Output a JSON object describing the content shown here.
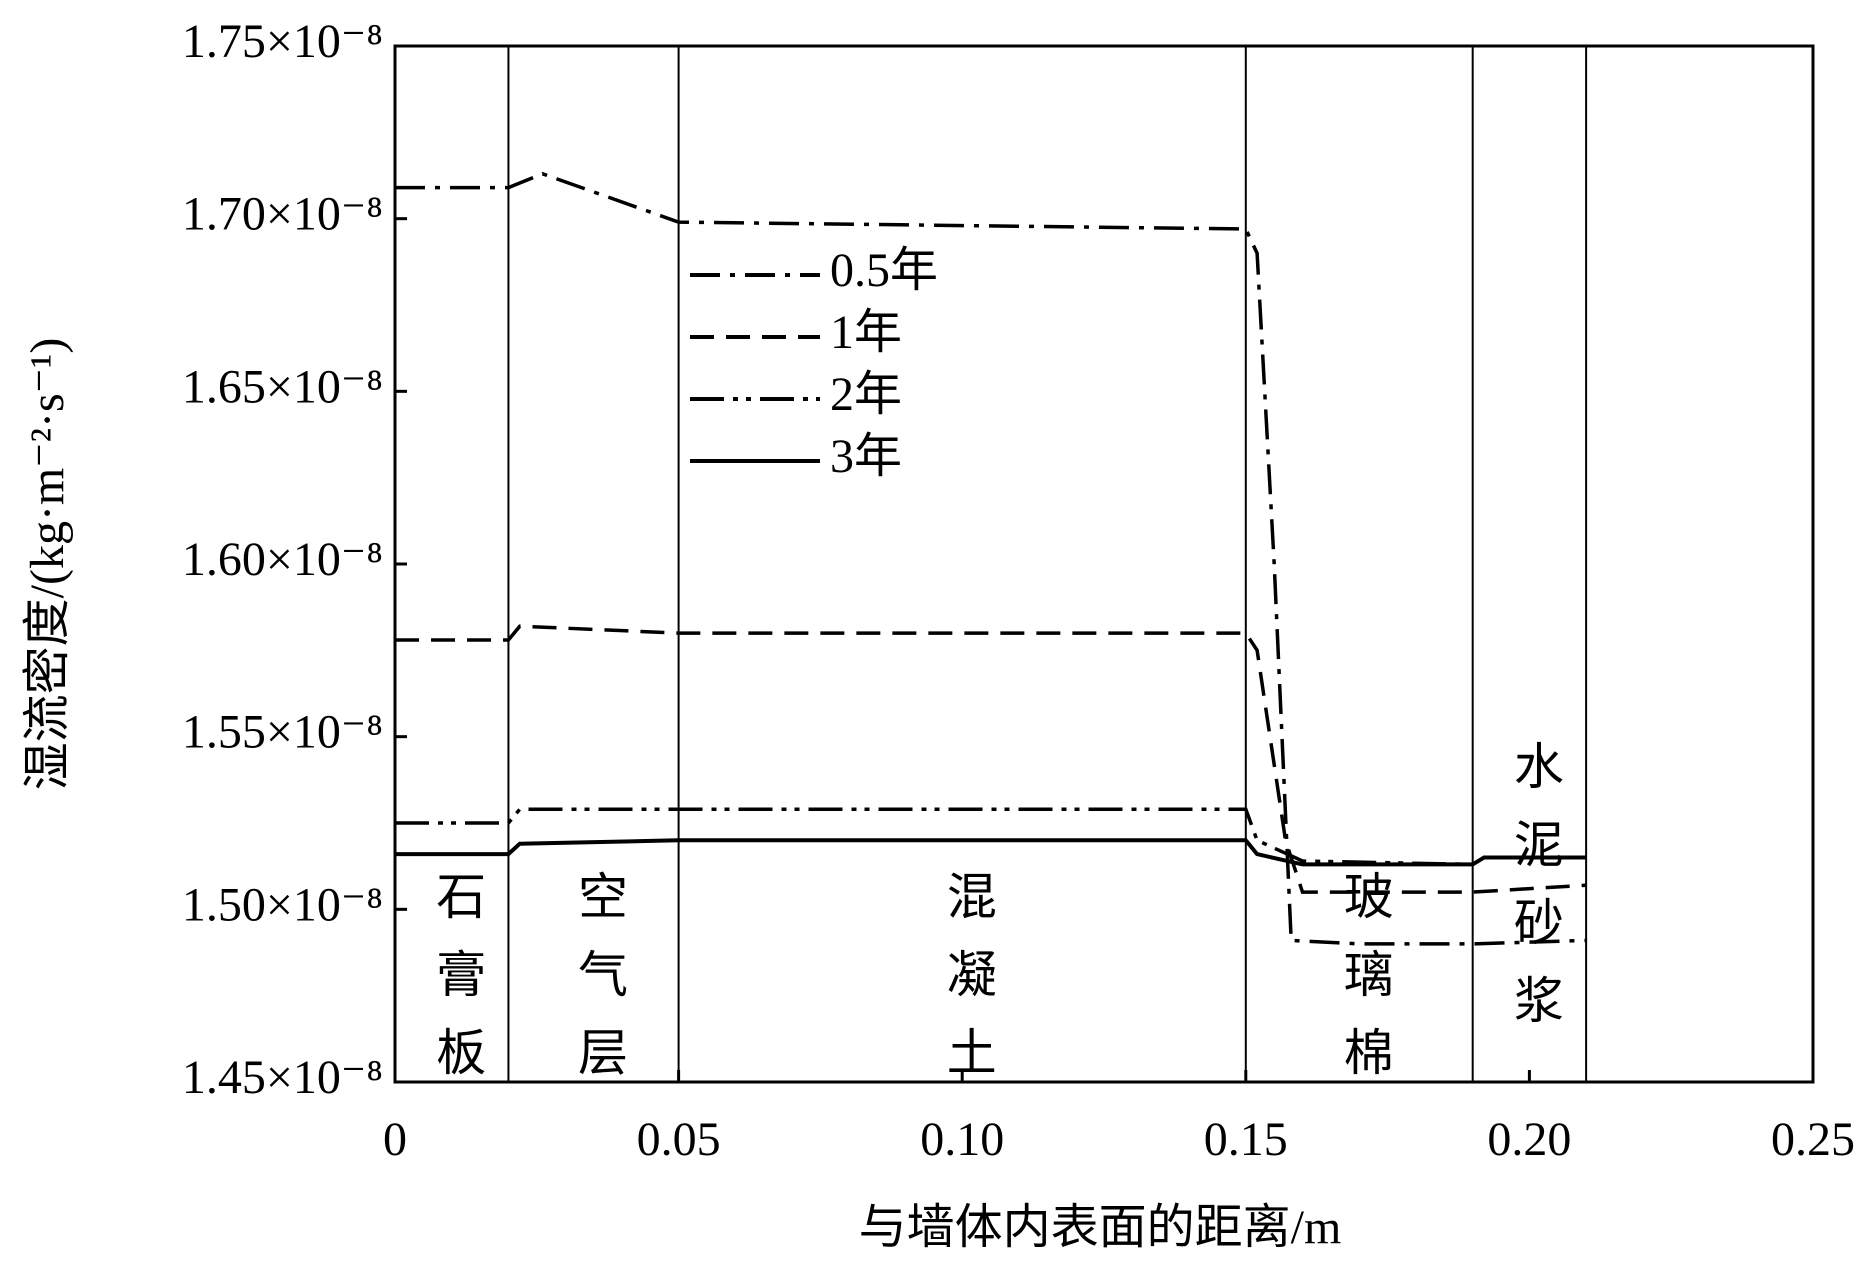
{
  "chart_data": {
    "type": "line",
    "xlabel": "与墙体内表面的距离/m",
    "ylabel": "湿流密度/(kg·m⁻²·s⁻¹)",
    "xlim": [
      0,
      0.25
    ],
    "xticks": [
      0,
      0.05,
      {
        "value": 0.1,
        "label": "0.10"
      },
      0.15,
      {
        "value": 0.2,
        "label": "0.20"
      },
      0.25
    ],
    "ylim": [
      1.45e-08,
      1.75e-08
    ],
    "yticks": [
      {
        "value": 1.45e-08,
        "label": "1.45×10⁻⁸"
      },
      {
        "value": 1.5e-08,
        "label": "1.50×10⁻⁸"
      },
      {
        "value": 1.55e-08,
        "label": "1.55×10⁻⁸"
      },
      {
        "value": 1.6e-08,
        "label": "1.60×10⁻⁸"
      },
      {
        "value": 1.65e-08,
        "label": "1.65×10⁻⁸"
      },
      {
        "value": 1.7e-08,
        "label": "1.70×10⁻⁸"
      },
      {
        "value": 1.75e-08,
        "label": "1.75×10⁻⁸"
      }
    ],
    "boundaries": [
      0.02,
      0.05,
      0.15,
      0.19,
      0.21
    ],
    "layers": [
      "石膏板",
      "空气层",
      "混凝土",
      "玻璃棉",
      "水泥砂浆"
    ],
    "legend": "upper-center",
    "series": [
      {
        "name": "0.5年",
        "color": "#000000",
        "style": "dashdot",
        "x": [
          0,
          0.02,
          0.026,
          0.05,
          0.15,
          0.152,
          0.155,
          0.158,
          0.17,
          0.19,
          0.21
        ],
        "values": [
          1.709e-08,
          1.709e-08,
          1.713e-08,
          1.699e-08,
          1.697e-08,
          1.69e-08,
          1.6e-08,
          1.491e-08,
          1.49e-08,
          1.49e-08,
          1.491e-08
        ]
      },
      {
        "name": "1年",
        "color": "#000000",
        "style": "dashed",
        "x": [
          0,
          0.02,
          0.022,
          0.05,
          0.15,
          0.152,
          0.157,
          0.16,
          0.19,
          0.21
        ],
        "values": [
          1.578e-08,
          1.578e-08,
          1.582e-08,
          1.58e-08,
          1.58e-08,
          1.575e-08,
          1.52e-08,
          1.505e-08,
          1.505e-08,
          1.507e-08
        ]
      },
      {
        "name": "2年",
        "color": "#000000",
        "style": "dashdotdot",
        "x": [
          0,
          0.02,
          0.022,
          0.15,
          0.152,
          0.16,
          0.19,
          0.192,
          0.21
        ],
        "values": [
          1.525e-08,
          1.525e-08,
          1.529e-08,
          1.529e-08,
          1.52e-08,
          1.514e-08,
          1.513e-08,
          1.515e-08,
          1.515e-08
        ]
      },
      {
        "name": "3年",
        "color": "#000000",
        "style": "solid",
        "x": [
          0,
          0.02,
          0.022,
          0.05,
          0.15,
          0.152,
          0.16,
          0.19,
          0.192,
          0.21
        ],
        "values": [
          1.516e-08,
          1.516e-08,
          1.519e-08,
          1.52e-08,
          1.52e-08,
          1.516e-08,
          1.513e-08,
          1.513e-08,
          1.515e-08,
          1.515e-08
        ]
      }
    ]
  }
}
